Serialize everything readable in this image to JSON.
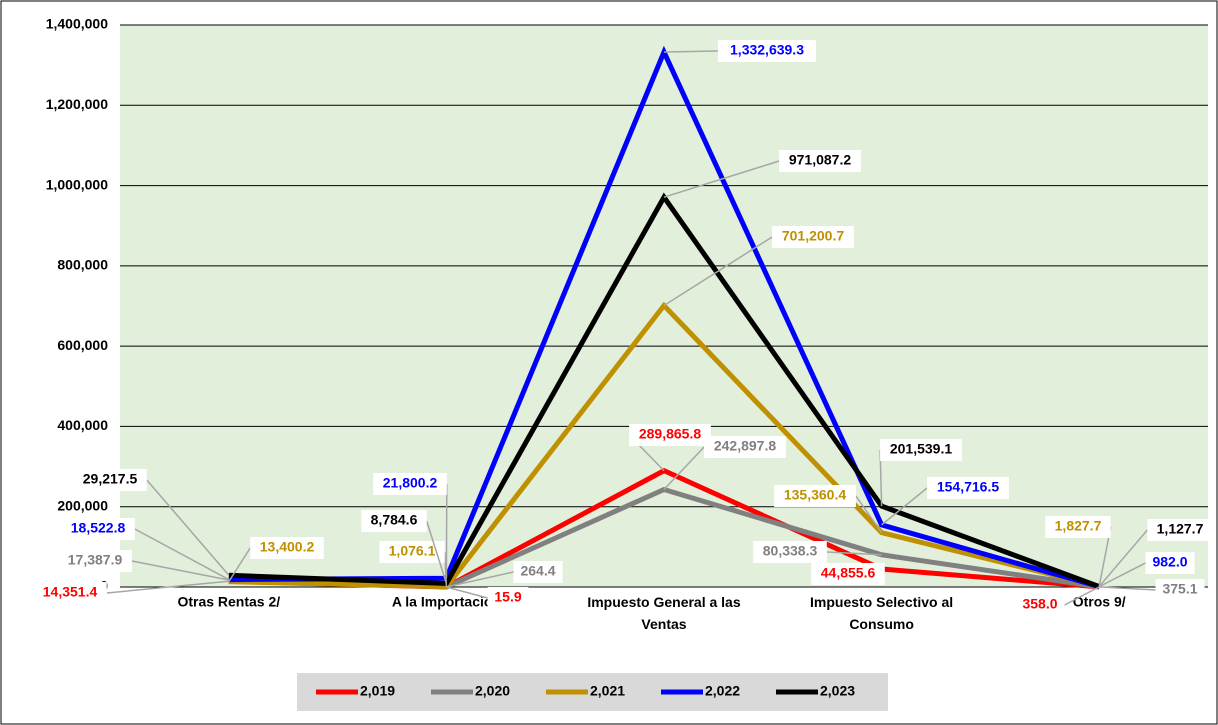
{
  "chart_data": {
    "type": "line",
    "categories": [
      "Otras Rentas 2/",
      "A la Importación",
      "Impuesto General a las Ventas",
      "Impuesto Selectivo al Consumo",
      "Otros 9/"
    ],
    "series": [
      {
        "name": "2,019",
        "color": "#ff0000",
        "values": [
          14351.4,
          15.9,
          289865.8,
          44855.6,
          358.0
        ],
        "value_labels": [
          "14,351.4",
          "15.9",
          "289,865.8",
          "44,855.6",
          "358.0"
        ]
      },
      {
        "name": "2,020",
        "color": "#808080",
        "values": [
          17387.9,
          264.4,
          242897.8,
          80338.3,
          375.1
        ],
        "value_labels": [
          "17,387.9",
          "264.4",
          "242,897.8",
          "80,338.3",
          "375.1"
        ]
      },
      {
        "name": "2,021",
        "color": "#bf9000",
        "values": [
          13400.2,
          1076.1,
          701200.7,
          135360.4,
          1827.7
        ],
        "value_labels": [
          "13,400.2",
          "1,076.1",
          "701,200.7",
          "135,360.4",
          "1,827.7"
        ]
      },
      {
        "name": "2,022",
        "color": "#0000ff",
        "values": [
          18522.8,
          21800.2,
          1332639.3,
          154716.5,
          982.0
        ],
        "value_labels": [
          "18,522.8",
          "21,800.2",
          "1,332,639.3",
          "154,716.5",
          "982.0"
        ]
      },
      {
        "name": "2,023",
        "color": "#000000",
        "values": [
          29217.5,
          8784.6,
          971087.2,
          201539.1,
          1127.7
        ],
        "value_labels": [
          "29,217.5",
          "8,784.6",
          "971,087.2",
          "201,539.1",
          "1,127.7"
        ]
      }
    ],
    "ylim": [
      0,
      1400000
    ],
    "yticks": [
      0,
      {
        "value": 200000,
        "label": "200,000"
      },
      {
        "value": 400000,
        "label": "400,000"
      },
      {
        "value": 600000,
        "label": "600,000"
      },
      {
        "value": 800000,
        "label": "800,000"
      },
      {
        "value": 1000000,
        "label": "1,000,000"
      },
      {
        "value": 1200000,
        "label": "1,200,000"
      },
      {
        "value": 1400000,
        "label": "1,400,000"
      }
    ],
    "grid": true,
    "legend": "bottom"
  }
}
